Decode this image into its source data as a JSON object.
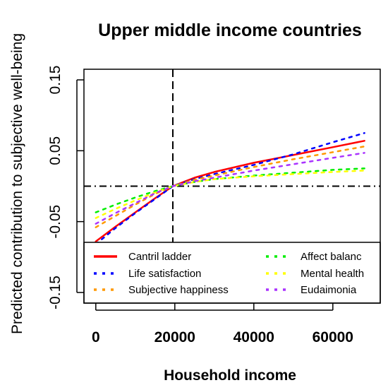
{
  "chart_data": {
    "type": "line",
    "title": "Upper middle income countries",
    "xlabel": "Household income",
    "ylabel": "Predicted contribution to subjective well-being",
    "xlim": [
      -3000,
      72000
    ],
    "ylim": [
      -0.165,
      0.165
    ],
    "x_ticks": [
      0,
      20000,
      40000,
      60000
    ],
    "x_tick_labels": [
      "0",
      "20000",
      "40000",
      "60000"
    ],
    "y_ticks": [
      0.15,
      0.05,
      -0.05,
      -0.15
    ],
    "y_tick_labels": [
      "0.15",
      "0.05",
      "-0.05",
      "-0.15"
    ],
    "reference_lines": {
      "vertical_x": 19500,
      "horizontal_y": 0
    },
    "grid": false,
    "legend_position": "bottom",
    "series": [
      {
        "name": "Cantril ladder",
        "color": "#ff0000",
        "dash": "solid",
        "x": [
          0,
          5000,
          10000,
          15000,
          19500,
          25000,
          30000,
          40000,
          50000,
          60000,
          68000
        ],
        "y": [
          -0.078,
          -0.057,
          -0.037,
          -0.017,
          0.0,
          0.012,
          0.02,
          0.033,
          0.044,
          0.055,
          0.064
        ]
      },
      {
        "name": "Life satisfaction",
        "color": "#0000ff",
        "dash": "dot",
        "x": [
          0,
          5000,
          10000,
          15000,
          19500,
          25000,
          30000,
          40000,
          50000,
          60000,
          68000
        ],
        "y": [
          -0.082,
          -0.059,
          -0.038,
          -0.018,
          0.0,
          0.01,
          0.017,
          0.03,
          0.045,
          0.062,
          0.075
        ]
      },
      {
        "name": "Subjective happiness",
        "color": "#ff9900",
        "dash": "dot",
        "x": [
          0,
          5000,
          10000,
          15000,
          19500,
          25000,
          30000,
          40000,
          50000,
          60000,
          68000
        ],
        "y": [
          -0.058,
          -0.042,
          -0.026,
          -0.011,
          0.0,
          0.009,
          0.015,
          0.027,
          0.038,
          0.048,
          0.056
        ]
      },
      {
        "name": "Affect balance",
        "color": "#00ee00",
        "dash": "dot",
        "x": [
          0,
          5000,
          10000,
          15000,
          19500,
          25000,
          30000,
          40000,
          50000,
          60000,
          68000
        ],
        "y": [
          -0.037,
          -0.026,
          -0.016,
          -0.007,
          0.0,
          0.006,
          0.01,
          0.015,
          0.019,
          0.023,
          0.025
        ]
      },
      {
        "name": "Mental health",
        "color": "#ffff00",
        "dash": "dot",
        "x": [
          0,
          5000,
          10000,
          15000,
          19500,
          25000,
          30000,
          40000,
          50000,
          60000,
          68000
        ],
        "y": [
          -0.045,
          -0.032,
          -0.02,
          -0.009,
          0.0,
          0.006,
          0.01,
          0.014,
          0.017,
          0.02,
          0.022
        ]
      },
      {
        "name": "Eudaimonia",
        "color": "#aa33ff",
        "dash": "dot",
        "x": [
          0,
          5000,
          10000,
          15000,
          19500,
          25000,
          30000,
          40000,
          50000,
          60000,
          68000
        ],
        "y": [
          -0.053,
          -0.038,
          -0.024,
          -0.01,
          0.0,
          0.007,
          0.012,
          0.022,
          0.031,
          0.04,
          0.047
        ]
      }
    ],
    "legend": {
      "left": [
        "Cantril ladder",
        "Life satisfaction",
        "Subjective happiness"
      ],
      "right": [
        "Affect balanc",
        "Mental health",
        "Eudaimonia"
      ]
    }
  }
}
